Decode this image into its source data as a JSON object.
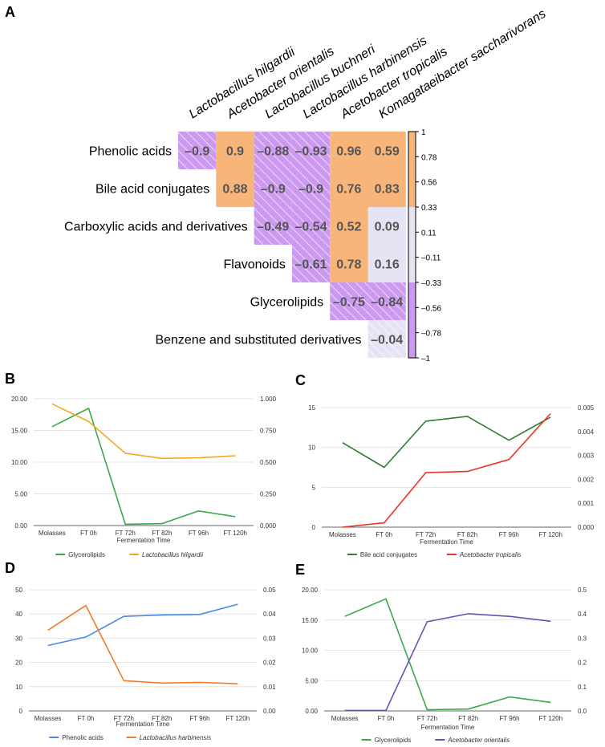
{
  "panel_labels": {
    "A": "A",
    "B": "B",
    "C": "C",
    "D": "D",
    "E": "E"
  },
  "colors": {
    "positive": "#f7b57a",
    "negative": "#cc99f0",
    "neutral": "#e4e4f4",
    "blank": "#ffffff",
    "green": "#3aa84a",
    "darkgreen": "#2e7d32",
    "orange_line": "#f5a623",
    "red_line": "#ea3323",
    "blue_line": "#4a86e8",
    "orange2_line": "#f47a25",
    "purple_line": "#6a4fb0",
    "axis_text": "#333333",
    "grid": "#dddddd"
  },
  "chart_data": [
    {
      "id": "A",
      "type": "heatmap",
      "title": "",
      "columns": [
        "Lactobacillus hilgardii",
        "Acetobacter orientalis",
        "Lactobacillus buchneri",
        "Lactobacillus harbinensis",
        "Acetobacter tropicalis",
        "Komagataeibacter saccharivorans"
      ],
      "rows": [
        "Phenolic acids",
        "Bile acid conjugates",
        "Carboxylic acids and derivatives",
        "Flavonoids",
        "Glycerolipids",
        "Benzene and substituted derivatives"
      ],
      "values": [
        [
          "–0.9",
          "0.9",
          "–0.88",
          "–0.93",
          "0.96",
          "0.59"
        ],
        [
          null,
          "0.88",
          "–0.9",
          "–0.9",
          "0.76",
          "0.83"
        ],
        [
          null,
          null,
          "–0.49",
          "–0.54",
          "0.52",
          "0.09"
        ],
        [
          null,
          null,
          null,
          "–0.61",
          "0.78",
          "0.16"
        ],
        [
          null,
          null,
          null,
          null,
          "–0.75",
          "–0.84"
        ],
        [
          null,
          null,
          null,
          null,
          null,
          "–0.04"
        ]
      ],
      "colorbar": {
        "ticks": [
          "1",
          "0.78",
          "0.56",
          "0.33",
          "0.11",
          "–0.11",
          "–0.33",
          "–0.56",
          "–0.78",
          "–1"
        ],
        "range": [
          -1,
          1
        ]
      }
    },
    {
      "id": "B",
      "type": "line",
      "categories": [
        "Molasses",
        "FT 0h",
        "FT 72h",
        "FT 82h",
        "FT 96h",
        "FT 120h"
      ],
      "xlabel": "Fermentation Time",
      "left_ylim": [
        0,
        20
      ],
      "left_ticks": [
        "0.00",
        "5.00",
        "10.00",
        "15.00",
        "20.00"
      ],
      "right_ylim": [
        0,
        1
      ],
      "right_ticks": [
        "0.000",
        "0.250",
        "0.500",
        "0.750",
        "1.000"
      ],
      "series": [
        {
          "name": "Glycerolipids",
          "axis": "left",
          "color": "#3aa84a",
          "italic": false,
          "values": [
            15.6,
            18.5,
            0.2,
            0.3,
            2.3,
            1.4
          ]
        },
        {
          "name": "Lactobacillus hilgardii",
          "axis": "right",
          "color": "#f5a623",
          "italic": true,
          "values": [
            0.96,
            0.82,
            0.57,
            0.53,
            0.535,
            0.55
          ]
        }
      ]
    },
    {
      "id": "C",
      "type": "line",
      "categories": [
        "Molasses",
        "FT 0h",
        "FT 72h",
        "FT 82h",
        "FT 96h",
        "FT 120h"
      ],
      "xlabel": "Fermentation Time",
      "left_ylim": [
        0,
        15
      ],
      "left_ticks": [
        "0",
        "5",
        "10",
        "15"
      ],
      "right_ylim": [
        0,
        0.005
      ],
      "right_ticks": [
        "0.000",
        "0.001",
        "0.002",
        "0.003",
        "0.004",
        "0.005"
      ],
      "series": [
        {
          "name": "Bile acid conjugates",
          "axis": "left",
          "color": "#2e7d32",
          "italic": false,
          "values": [
            10.6,
            7.5,
            13.3,
            13.9,
            10.9,
            13.8
          ]
        },
        {
          "name": "Acetobacter tropicalis",
          "axis": "right",
          "color": "#ea3323",
          "italic": true,
          "values": [
            0.0,
            0.00018,
            0.00228,
            0.00233,
            0.00283,
            0.00475
          ]
        }
      ]
    },
    {
      "id": "D",
      "type": "line",
      "categories": [
        "Molasses",
        "FT 0h",
        "FT 72h",
        "FT 82h",
        "FT 96h",
        "FT 120h"
      ],
      "xlabel": "Fermentation Time",
      "left_ylim": [
        0,
        50
      ],
      "left_ticks": [
        "0",
        "10",
        "20",
        "30",
        "40",
        "50"
      ],
      "right_ylim": [
        0,
        0.05
      ],
      "right_ticks": [
        "0.00",
        "0.01",
        "0.02",
        "0.03",
        "0.04",
        "0.05"
      ],
      "series": [
        {
          "name": "Phenolic acids",
          "axis": "left",
          "color": "#4a86e8",
          "italic": false,
          "values": [
            27,
            30.5,
            39,
            39.6,
            39.8,
            44
          ]
        },
        {
          "name": "Lactobacillus harbinensis",
          "axis": "right",
          "color": "#f47a25",
          "italic": true,
          "values": [
            0.0333,
            0.0435,
            0.0125,
            0.0115,
            0.0118,
            0.0112
          ]
        }
      ]
    },
    {
      "id": "E",
      "type": "line",
      "categories": [
        "Molasses",
        "FT 0h",
        "FT 72h",
        "FT 82h",
        "FT 96h",
        "FT 120h"
      ],
      "xlabel": "Fermentation Time",
      "left_ylim": [
        0,
        20
      ],
      "left_ticks": [
        "0.00",
        "5.00",
        "10.00",
        "15.00",
        "20.00"
      ],
      "right_ylim": [
        0,
        0.5
      ],
      "right_ticks": [
        "0.0",
        "0.1",
        "0.2",
        "0.3",
        "0.4",
        "0.5"
      ],
      "series": [
        {
          "name": "Glycerolipids",
          "axis": "left",
          "color": "#3aa84a",
          "italic": false,
          "values": [
            15.6,
            18.5,
            0.2,
            0.3,
            2.3,
            1.4
          ]
        },
        {
          "name": "Acetobacter orientalis",
          "axis": "right",
          "color": "#6a4fb0",
          "italic": true,
          "values": [
            0.002,
            0.002,
            0.368,
            0.401,
            0.39,
            0.37
          ]
        }
      ]
    }
  ]
}
